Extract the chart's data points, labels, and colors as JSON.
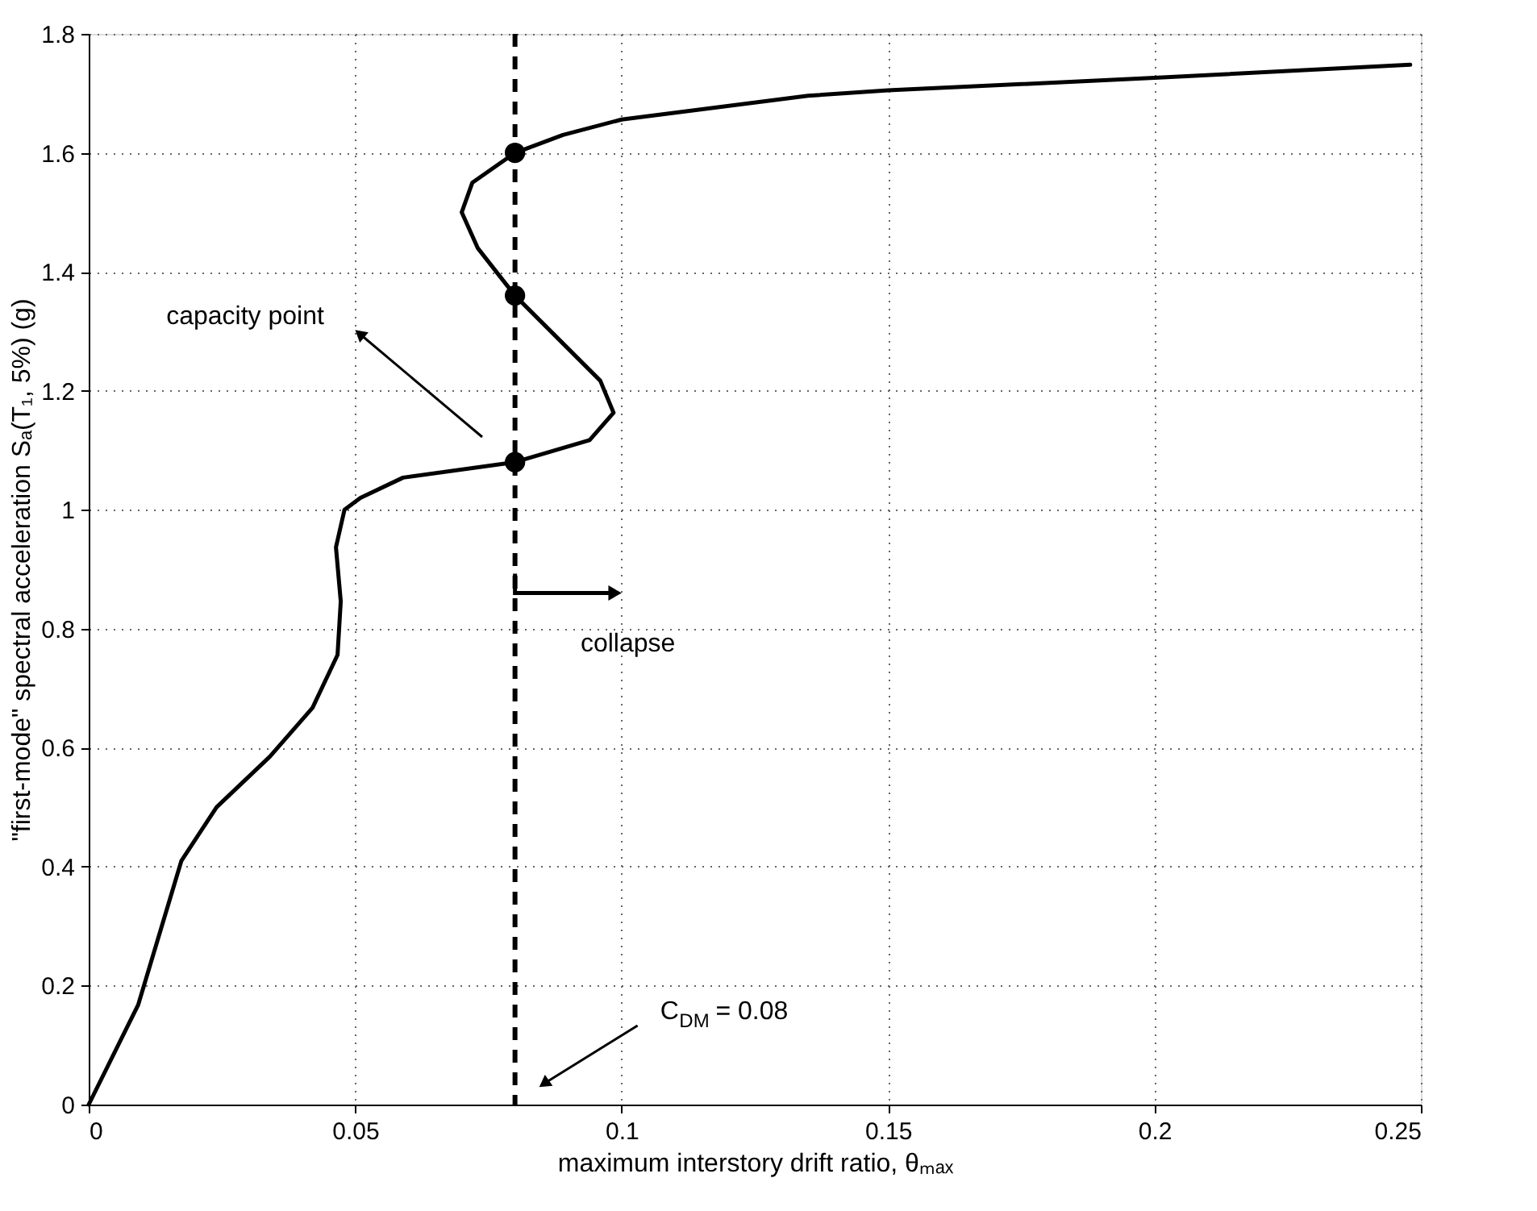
{
  "chart_data": {
    "type": "line",
    "xlabel": "maximum interstory drift ratio, θₘₐₓ",
    "ylabel": "\"first-mode\" spectral acceleration Sₐ(T₁, 5%)  (g)",
    "xlim": [
      0,
      0.25
    ],
    "xticks": [
      0,
      0.05,
      0.1,
      0.15,
      0.2,
      0.25
    ],
    "ylim": [
      0,
      1.8
    ],
    "yticks": [
      0,
      0.2,
      0.4,
      0.6,
      0.8,
      1,
      1.2,
      1.4,
      1.6,
      1.8
    ],
    "grid": true,
    "series": [
      {
        "type": "line",
        "color": "#000000",
        "line_style": "solid",
        "marker": "none",
        "x": [
          0,
          0.0093,
          0.0174,
          0.024,
          0.034,
          0.042,
          0.0467,
          0.0473,
          0.0464,
          0.048,
          0.051,
          0.059,
          0.08,
          0.094,
          0.0985,
          0.096,
          0.08,
          0.073,
          0.07,
          0.072,
          0.08,
          0.089,
          0.1,
          0.135,
          0.15,
          0.2,
          0.248
        ],
        "values": [
          0,
          0.168,
          0.41,
          0.5,
          0.585,
          0.667,
          0.756,
          0.846,
          0.937,
          1.0,
          1.02,
          1.054,
          1.08,
          1.117,
          1.163,
          1.217,
          1.36,
          1.44,
          1.5,
          1.55,
          1.6,
          1.63,
          1.656,
          1.696,
          1.705,
          1.726,
          1.748
        ]
      },
      {
        "type": "scatter",
        "color": "#000000",
        "marker": "circle",
        "x": [
          0.08,
          0.08,
          0.08
        ],
        "values": [
          1.08,
          1.36,
          1.6
        ]
      }
    ],
    "ref_lines": [
      {
        "axis": "x",
        "value": 0.08,
        "label": "C$_{DM}$ = 0.08",
        "line_style": "dashed",
        "color": "#000000"
      }
    ],
    "annotations": [
      "capacity point",
      {
        "text": "collapse",
        "x": 0.08,
        "y": 0.86
      }
    ]
  }
}
